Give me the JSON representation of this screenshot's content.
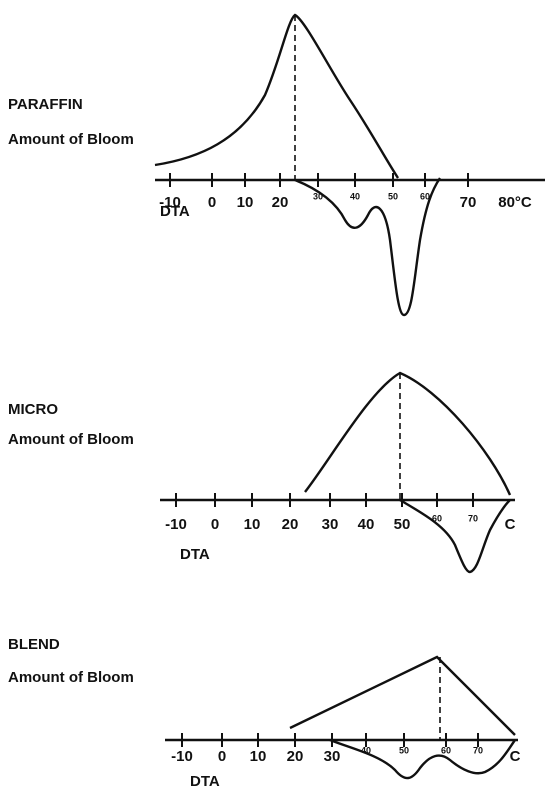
{
  "panels": [
    {
      "name": "PARAFFIN",
      "label": "Amount of Bloom",
      "axis_label": "DTA",
      "ticks": [
        "-10",
        "0",
        "10",
        "20",
        "30",
        "40",
        "50",
        "60",
        "70",
        "80°C"
      ]
    },
    {
      "name": "MICRO",
      "label": "Amount of Bloom",
      "axis_label": "DTA",
      "ticks": [
        "-10",
        "0",
        "10",
        "20",
        "30",
        "40",
        "50",
        "60",
        "70",
        "C"
      ]
    },
    {
      "name": "BLEND",
      "label": "Amount of Bloom",
      "axis_label": "DTA",
      "ticks": [
        "-10",
        "0",
        "10",
        "20",
        "30",
        "40",
        "50",
        "60",
        "70",
        "C"
      ]
    }
  ]
}
